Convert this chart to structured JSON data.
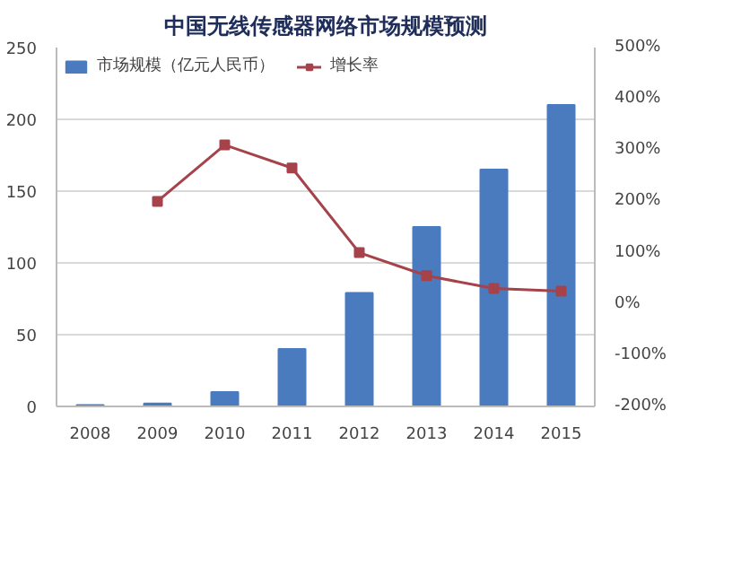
{
  "chart_data": {
    "type": "bar",
    "title": "中国无线传感器网络市场规模预测",
    "categories": [
      "2008",
      "2009",
      "2010",
      "2011",
      "2012",
      "2013",
      "2014",
      "2015"
    ],
    "series": [
      {
        "name": "市场规模（亿元人民币）",
        "color": "#4a7bbf",
        "values": [
          1,
          2,
          10,
          40,
          79,
          125,
          165,
          210
        ]
      },
      {
        "name": "增长率",
        "color": "#a5424a",
        "type": "line",
        "axis": "y2",
        "marker": "square",
        "values": [
          null,
          200,
          310,
          265,
          100,
          55,
          30,
          25
        ]
      }
    ],
    "ylim": [
      0,
      250
    ],
    "yticks": [
      0,
      50,
      100,
      150,
      200,
      250
    ],
    "y2lim": [
      -200,
      500
    ],
    "y2ticks": [
      {
        "value": -200,
        "label": "-200%"
      },
      {
        "value": -100,
        "label": "-100%"
      },
      {
        "value": 0,
        "label": "0%"
      },
      {
        "value": 100,
        "label": "100%"
      },
      {
        "value": 200,
        "label": "200%"
      },
      {
        "value": 300,
        "label": "300%"
      },
      {
        "value": 400,
        "label": "400%"
      },
      {
        "value": 500,
        "label": "500%"
      }
    ],
    "grid": "y",
    "legend": "top left"
  }
}
